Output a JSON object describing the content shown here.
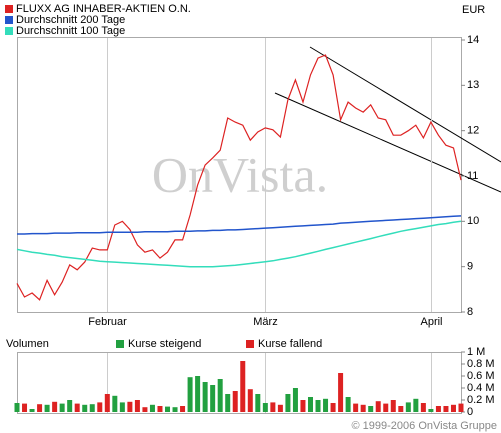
{
  "chart_data": [
    {
      "type": "line",
      "currency": "EUR",
      "watermark": "OnVista.",
      "categories": [
        null,
        null,
        null,
        null,
        null,
        null,
        null,
        null,
        null,
        null,
        null,
        null,
        "Februar",
        null,
        null,
        null,
        null,
        null,
        null,
        null,
        null,
        null,
        null,
        null,
        null,
        null,
        null,
        null,
        null,
        null,
        null,
        null,
        null,
        "März",
        null,
        null,
        null,
        null,
        null,
        null,
        null,
        null,
        null,
        null,
        null,
        null,
        null,
        null,
        null,
        null,
        null,
        null,
        null,
        null,
        null,
        "April",
        null,
        null,
        null,
        null
      ],
      "ylim": [
        8,
        14
      ],
      "yticks": [
        8,
        9,
        10,
        11,
        12,
        13,
        14
      ],
      "series": [
        {
          "name": "FLUXX AG INHABER-AKTIEN O.N.",
          "color": "#dd2222",
          "values": [
            8.63,
            8.33,
            8.42,
            8.27,
            8.7,
            8.38,
            8.66,
            9.04,
            8.93,
            9.1,
            9.41,
            9.37,
            9.37,
            9.92,
            10.0,
            9.82,
            9.48,
            9.32,
            9.37,
            9.19,
            9.32,
            9.59,
            9.59,
            10.14,
            10.8,
            11.24,
            11.4,
            11.57,
            12.28,
            12.19,
            12.12,
            11.79,
            11.97,
            12.06,
            12.02,
            11.86,
            12.68,
            13.12,
            12.63,
            13.23,
            13.6,
            13.67,
            13.23,
            12.24,
            12.63,
            12.5,
            12.41,
            12.57,
            12.28,
            12.24,
            11.9,
            11.9,
            12.0,
            12.12,
            11.84,
            12.19,
            11.9,
            11.68,
            11.62,
            10.91
          ]
        },
        {
          "name": "Durchschnitt 200 Tage",
          "color": "#2255cc",
          "values": [
            9.72,
            9.72,
            9.73,
            9.73,
            9.73,
            9.74,
            9.74,
            9.74,
            9.75,
            9.75,
            9.75,
            9.75,
            9.76,
            9.76,
            9.76,
            9.76,
            9.76,
            9.77,
            9.77,
            9.77,
            9.77,
            9.78,
            9.78,
            9.78,
            9.79,
            9.79,
            9.8,
            9.8,
            9.81,
            9.81,
            9.82,
            9.83,
            9.84,
            9.85,
            9.86,
            9.87,
            9.88,
            9.89,
            9.9,
            9.91,
            9.92,
            9.93,
            9.94,
            9.96,
            9.97,
            9.98,
            9.99,
            10.0,
            10.01,
            10.02,
            10.03,
            10.04,
            10.05,
            10.06,
            10.07,
            10.08,
            10.09,
            10.1,
            10.11,
            10.12
          ]
        },
        {
          "name": "Durchschnitt 100 Tage",
          "color": "#33ddbb",
          "values": [
            9.38,
            9.35,
            9.32,
            9.3,
            9.27,
            9.25,
            9.22,
            9.2,
            9.18,
            9.16,
            9.14,
            9.12,
            9.11,
            9.1,
            9.09,
            9.08,
            9.07,
            9.06,
            9.05,
            9.04,
            9.03,
            9.02,
            9.01,
            9.0,
            9.0,
            9.0,
            9.0,
            9.01,
            9.02,
            9.03,
            9.05,
            9.07,
            9.09,
            9.11,
            9.13,
            9.16,
            9.19,
            9.22,
            9.26,
            9.3,
            9.34,
            9.38,
            9.42,
            9.46,
            9.5,
            9.54,
            9.58,
            9.62,
            9.66,
            9.7,
            9.74,
            9.78,
            9.81,
            9.84,
            9.87,
            9.9,
            9.93,
            9.95,
            9.98,
            10.0
          ]
        }
      ]
    },
    {
      "type": "bar",
      "title": "Volumen",
      "ylim": [
        0,
        1
      ],
      "yticks": [
        0,
        {
          "value": 0.2,
          "label": "0.2 M"
        },
        {
          "value": 0.4,
          "label": "0.4 M"
        },
        {
          "value": 0.6,
          "label": "0.6 M"
        },
        {
          "value": 0.8,
          "label": "0.8 M"
        },
        {
          "value": 1,
          "label": "1 M"
        }
      ],
      "series": [
        {
          "name": "Kurse steigend",
          "color": "#22a040",
          "values": [
            0.15,
            null,
            0.05,
            null,
            0.12,
            null,
            0.14,
            0.2,
            null,
            0.12,
            0.13,
            null,
            null,
            0.27,
            0.16,
            null,
            null,
            null,
            0.12,
            null,
            0.09,
            0.08,
            null,
            0.58,
            0.6,
            0.5,
            0.45,
            0.55,
            0.3,
            null,
            null,
            null,
            0.3,
            0.15,
            null,
            null,
            0.3,
            0.4,
            null,
            0.25,
            0.2,
            0.22,
            null,
            null,
            0.25,
            null,
            null,
            0.1,
            null,
            null,
            null,
            null,
            0.16,
            0.22,
            null,
            0.05,
            null,
            null,
            null,
            null
          ]
        },
        {
          "name": "Kurse fallend",
          "color": "#dd2222",
          "values": [
            null,
            0.14,
            null,
            0.13,
            null,
            0.17,
            null,
            null,
            0.14,
            null,
            null,
            0.16,
            0.3,
            null,
            null,
            0.17,
            0.2,
            0.08,
            null,
            0.1,
            null,
            null,
            0.1,
            null,
            null,
            null,
            null,
            null,
            null,
            0.35,
            0.85,
            0.38,
            null,
            null,
            0.16,
            0.12,
            null,
            null,
            0.2,
            null,
            null,
            null,
            0.15,
            0.65,
            null,
            0.14,
            0.12,
            null,
            0.18,
            0.14,
            0.2,
            0.1,
            null,
            null,
            0.15,
            null,
            0.1,
            0.1,
            0.12,
            0.14
          ]
        }
      ]
    }
  ],
  "copyright": "© 1999-2006 OnVista Gruppe"
}
